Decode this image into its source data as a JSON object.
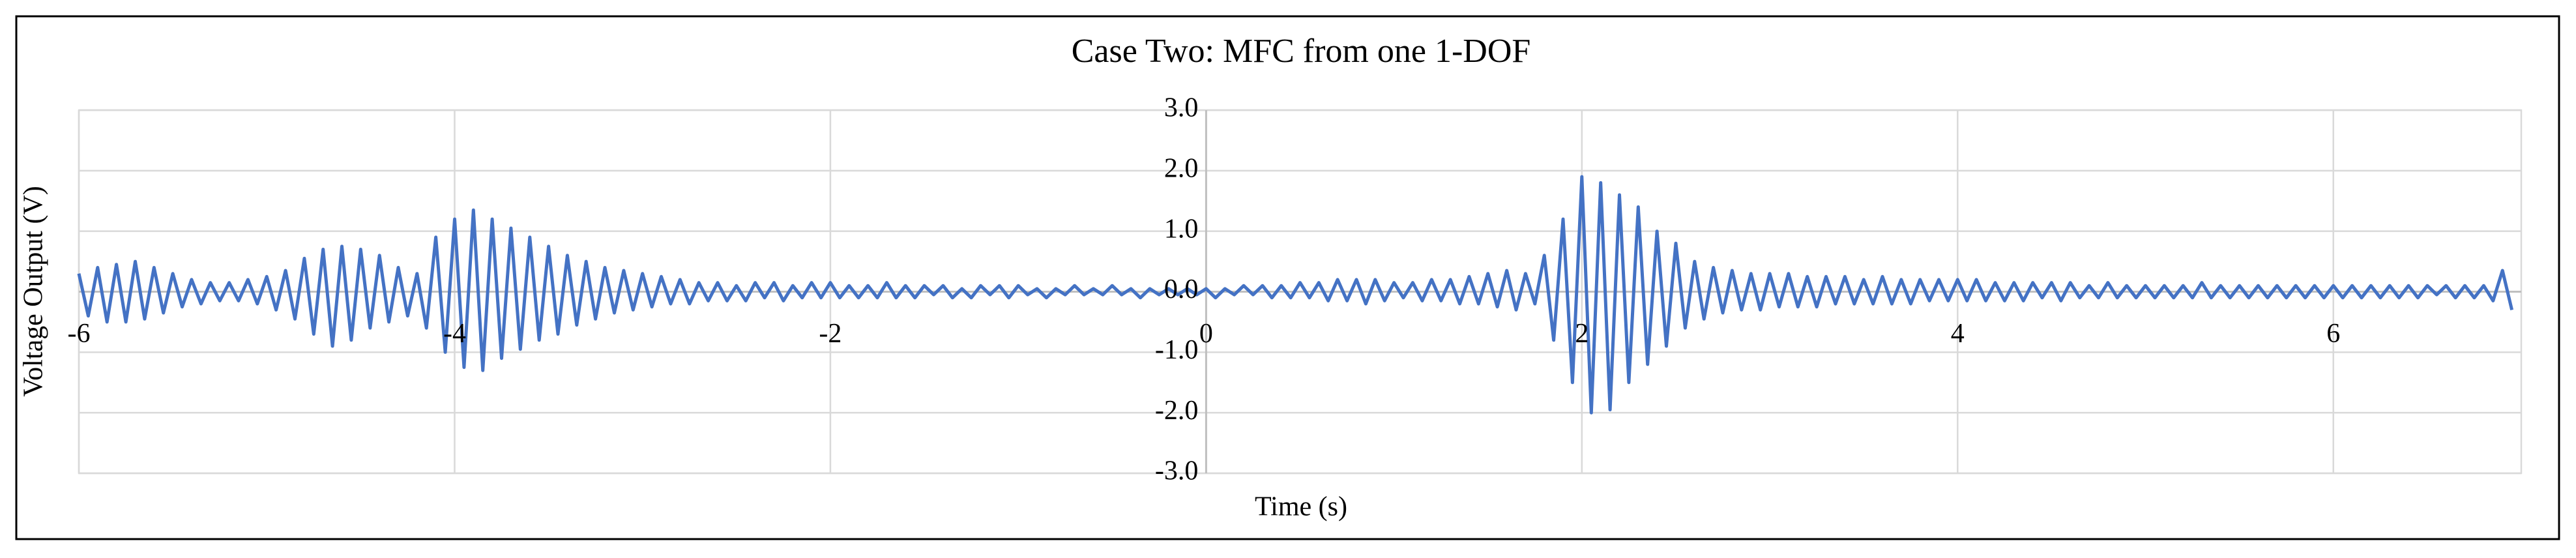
{
  "chart_data": {
    "type": "line",
    "title": "Case Two: MFC from one 1-DOF",
    "xlabel": "Time (s)",
    "ylabel": "Voltage Output (V)",
    "color": "#4472c4",
    "grid": true,
    "xlim": [
      -6,
      7
    ],
    "xticks": [
      -6,
      -4,
      -2,
      0,
      2,
      4,
      6
    ],
    "ylim": [
      -3,
      3
    ],
    "yticks": [
      {
        "value": -3,
        "label": "-3.0"
      },
      {
        "value": -2,
        "label": "-2.0"
      },
      {
        "value": -1,
        "label": "-1.0"
      },
      {
        "value": 0,
        "label": "0.0"
      },
      {
        "value": 1,
        "label": "1.0"
      },
      {
        "value": 2,
        "label": "2.0"
      },
      {
        "value": 3,
        "label": "3.0"
      }
    ],
    "x": [
      -6,
      -5.95,
      -5.9,
      -5.85,
      -5.8,
      -5.75,
      -5.7,
      -5.65,
      -5.6,
      -5.55,
      -5.5,
      -5.45,
      -5.4,
      -5.35,
      -5.3,
      -5.25,
      -5.2,
      -5.15,
      -5.1,
      -5.05,
      -5,
      -4.95,
      -4.9,
      -4.85,
      -4.8,
      -4.75,
      -4.7,
      -4.65,
      -4.6,
      -4.55,
      -4.5,
      -4.45,
      -4.4,
      -4.35,
      -4.3,
      -4.25,
      -4.2,
      -4.15,
      -4.1,
      -4.05,
      -4,
      -3.95,
      -3.9,
      -3.85,
      -3.8,
      -3.75,
      -3.7,
      -3.65,
      -3.6,
      -3.55,
      -3.5,
      -3.45,
      -3.4,
      -3.35,
      -3.3,
      -3.25,
      -3.2,
      -3.15,
      -3.1,
      -3.05,
      -3,
      -2.95,
      -2.9,
      -2.85,
      -2.8,
      -2.75,
      -2.7,
      -2.65,
      -2.6,
      -2.55,
      -2.5,
      -2.45,
      -2.4,
      -2.35,
      -2.3,
      -2.25,
      -2.2,
      -2.15,
      -2.1,
      -2.05,
      -2,
      -1.95,
      -1.9,
      -1.85,
      -1.8,
      -1.75,
      -1.7,
      -1.65,
      -1.6,
      -1.55,
      -1.5,
      -1.45,
      -1.4,
      -1.35,
      -1.3,
      -1.25,
      -1.2,
      -1.15,
      -1.1,
      -1.05,
      -1,
      -0.95,
      -0.9,
      -0.85,
      -0.8,
      -0.75,
      -0.7,
      -0.65,
      -0.6,
      -0.55,
      -0.5,
      -0.45,
      -0.4,
      -0.35,
      -0.3,
      -0.25,
      -0.2,
      -0.15,
      -0.1,
      -0.05,
      0,
      0.05,
      0.1,
      0.15,
      0.2,
      0.25,
      0.3,
      0.35,
      0.4,
      0.45,
      0.5,
      0.55,
      0.6,
      0.65,
      0.7,
      0.75,
      0.8,
      0.85,
      0.9,
      0.95,
      1,
      1.05,
      1.1,
      1.15,
      1.2,
      1.25,
      1.3,
      1.35,
      1.4,
      1.45,
      1.5,
      1.55,
      1.6,
      1.65,
      1.7,
      1.75,
      1.8,
      1.85,
      1.9,
      1.95,
      2,
      2.05,
      2.1,
      2.15,
      2.2,
      2.25,
      2.3,
      2.35,
      2.4,
      2.45,
      2.5,
      2.55,
      2.6,
      2.65,
      2.7,
      2.75,
      2.8,
      2.85,
      2.9,
      2.95,
      3,
      3.05,
      3.1,
      3.15,
      3.2,
      3.25,
      3.3,
      3.35,
      3.4,
      3.45,
      3.5,
      3.55,
      3.6,
      3.65,
      3.7,
      3.75,
      3.8,
      3.85,
      3.9,
      3.95,
      4,
      4.05,
      4.1,
      4.15,
      4.2,
      4.25,
      4.3,
      4.35,
      4.4,
      4.45,
      4.5,
      4.55,
      4.6,
      4.65,
      4.7,
      4.75,
      4.8,
      4.85,
      4.9,
      4.95,
      5,
      5.05,
      5.1,
      5.15,
      5.2,
      5.25,
      5.3,
      5.35,
      5.4,
      5.45,
      5.5,
      5.55,
      5.6,
      5.65,
      5.7,
      5.75,
      5.8,
      5.85,
      5.9,
      5.95,
      6,
      6.05,
      6.1,
      6.15,
      6.2,
      6.25,
      6.3,
      6.35,
      6.4,
      6.45,
      6.5,
      6.55,
      6.6,
      6.65,
      6.7,
      6.75,
      6.8,
      6.85,
      6.9,
      6.95
    ],
    "values": [
      0.3,
      -0.4,
      0.4,
      -0.5,
      0.45,
      -0.5,
      0.5,
      -0.45,
      0.4,
      -0.35,
      0.3,
      -0.25,
      0.2,
      -0.2,
      0.15,
      -0.15,
      0.15,
      -0.15,
      0.2,
      -0.2,
      0.25,
      -0.3,
      0.35,
      -0.45,
      0.55,
      -0.7,
      0.7,
      -0.9,
      0.75,
      -0.8,
      0.7,
      -0.6,
      0.6,
      -0.5,
      0.4,
      -0.4,
      0.3,
      -0.6,
      0.9,
      -1.0,
      1.2,
      -1.25,
      1.35,
      -1.3,
      1.2,
      -1.1,
      1.05,
      -0.95,
      0.9,
      -0.8,
      0.75,
      -0.7,
      0.6,
      -0.55,
      0.5,
      -0.45,
      0.4,
      -0.35,
      0.35,
      -0.3,
      0.3,
      -0.25,
      0.25,
      -0.2,
      0.2,
      -0.2,
      0.15,
      -0.15,
      0.15,
      -0.15,
      0.1,
      -0.15,
      0.15,
      -0.1,
      0.15,
      -0.15,
      0.1,
      -0.1,
      0.15,
      -0.1,
      0.15,
      -0.1,
      0.1,
      -0.1,
      0.1,
      -0.1,
      0.15,
      -0.1,
      0.1,
      -0.1,
      0.1,
      -0.05,
      0.1,
      -0.1,
      0.05,
      -0.1,
      0.1,
      -0.05,
      0.1,
      -0.1,
      0.1,
      -0.05,
      0.05,
      -0.1,
      0.05,
      -0.05,
      0.1,
      -0.05,
      0.05,
      -0.05,
      0.1,
      -0.05,
      0.05,
      -0.1,
      0.05,
      -0.05,
      0.05,
      -0.05,
      0.05,
      -0.05,
      0.05,
      -0.1,
      0.05,
      -0.05,
      0.1,
      -0.05,
      0.1,
      -0.1,
      0.1,
      -0.1,
      0.15,
      -0.1,
      0.15,
      -0.15,
      0.2,
      -0.15,
      0.2,
      -0.2,
      0.2,
      -0.15,
      0.15,
      -0.1,
      0.15,
      -0.15,
      0.2,
      -0.15,
      0.2,
      -0.2,
      0.25,
      -0.2,
      0.3,
      -0.25,
      0.35,
      -0.3,
      0.3,
      -0.2,
      0.6,
      -0.8,
      1.2,
      -1.5,
      1.9,
      -2.0,
      1.8,
      -1.95,
      1.6,
      -1.5,
      1.4,
      -1.2,
      1.0,
      -0.9,
      0.8,
      -0.6,
      0.5,
      -0.45,
      0.4,
      -0.35,
      0.35,
      -0.3,
      0.3,
      -0.3,
      0.3,
      -0.25,
      0.3,
      -0.25,
      0.25,
      -0.25,
      0.25,
      -0.2,
      0.25,
      -0.2,
      0.2,
      -0.2,
      0.25,
      -0.2,
      0.2,
      -0.2,
      0.2,
      -0.15,
      0.2,
      -0.15,
      0.2,
      -0.15,
      0.2,
      -0.15,
      0.15,
      -0.15,
      0.15,
      -0.15,
      0.15,
      -0.1,
      0.15,
      -0.15,
      0.15,
      -0.1,
      0.1,
      -0.1,
      0.15,
      -0.1,
      0.1,
      -0.1,
      0.1,
      -0.1,
      0.1,
      -0.1,
      0.1,
      -0.1,
      0.15,
      -0.1,
      0.1,
      -0.1,
      0.1,
      -0.1,
      0.1,
      -0.1,
      0.1,
      -0.1,
      0.1,
      -0.1,
      0.1,
      -0.1,
      0.1,
      -0.1,
      0.1,
      -0.1,
      0.1,
      -0.1,
      0.1,
      -0.1,
      0.1,
      -0.1,
      0.1,
      -0.05,
      0.1,
      -0.1,
      0.1,
      -0.1,
      0.1,
      -0.15,
      0.35,
      -0.3
    ]
  }
}
